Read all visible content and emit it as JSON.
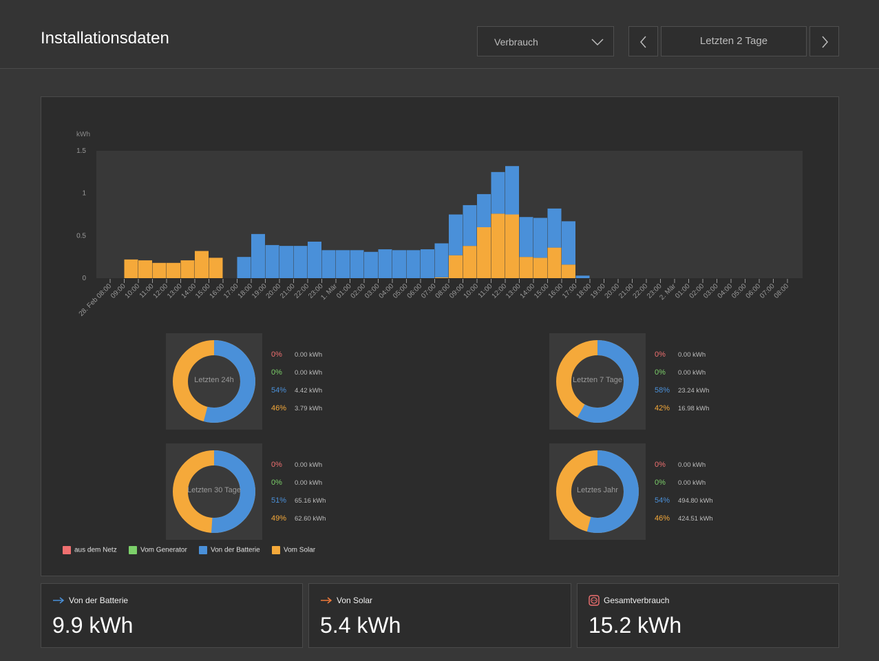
{
  "header": {
    "title": "Installationsdaten",
    "dropdown_value": "Verbrauch",
    "range_label": "Letzten 2 Tage"
  },
  "colors": {
    "grid": "#f07070",
    "generator": "#7cd06a",
    "battery": "#4a90d9",
    "solar": "#f5a93a"
  },
  "chart_data": {
    "type": "bar",
    "ylabel": "kWh",
    "ylim": [
      0,
      1.5
    ],
    "yticks": [
      "0",
      "0.5",
      "1",
      "1.5"
    ],
    "categories": [
      "28. Feb 08:00",
      "09:00",
      "10:00",
      "11:00",
      "12:00",
      "13:00",
      "14:00",
      "15:00",
      "16:00",
      "17:00",
      "18:00",
      "19:00",
      "20:00",
      "21:00",
      "22:00",
      "23:00",
      "1. Mär",
      "01:00",
      "02:00",
      "03:00",
      "04:00",
      "05:00",
      "06:00",
      "07:00",
      "08:00",
      "09:00",
      "10:00",
      "11:00",
      "12:00",
      "13:00",
      "14:00",
      "15:00",
      "16:00",
      "17:00",
      "18:00",
      "19:00",
      "20:00",
      "21:00",
      "22:00",
      "23:00",
      "2. Mär",
      "01:00",
      "02:00",
      "03:00",
      "04:00",
      "05:00",
      "06:00",
      "07:00",
      "08:00"
    ],
    "series": [
      {
        "name": "Vom Solar",
        "color": "#f5a93a",
        "values": [
          0,
          0.22,
          0.21,
          0.18,
          0.18,
          0.21,
          0.32,
          0.24,
          0,
          0,
          0,
          0,
          0,
          0,
          0,
          0,
          0,
          0,
          0,
          0,
          0,
          0,
          0,
          0.01,
          0.27,
          0.38,
          0.6,
          0.76,
          0.75,
          0.25,
          0.24,
          0.36,
          0.16,
          0,
          0,
          0,
          0,
          0,
          0,
          0,
          0,
          0,
          0,
          0,
          0,
          0,
          0,
          0,
          0
        ]
      },
      {
        "name": "Von der Batterie",
        "color": "#4a90d9",
        "values": [
          0,
          0,
          0,
          0,
          0,
          0,
          0,
          0,
          0,
          0.25,
          0.52,
          0.39,
          0.38,
          0.38,
          0.43,
          0.33,
          0.33,
          0.33,
          0.31,
          0.34,
          0.33,
          0.33,
          0.34,
          0.4,
          0.48,
          0.48,
          0.39,
          0.49,
          0.57,
          0.47,
          0.47,
          0.46,
          0.51,
          0.03,
          0,
          0,
          0,
          0,
          0,
          0,
          0,
          0,
          0,
          0,
          0,
          0,
          0,
          0,
          0
        ]
      }
    ]
  },
  "donuts": [
    {
      "title": "Letzten 24h",
      "rows": [
        {
          "pct": "0%",
          "kwh": "0.00 kWh",
          "color": "#f07070"
        },
        {
          "pct": "0%",
          "kwh": "0.00 kWh",
          "color": "#7cd06a"
        },
        {
          "pct": "54%",
          "kwh": "4.42 kWh",
          "color": "#4a90d9"
        },
        {
          "pct": "46%",
          "kwh": "3.79 kWh",
          "color": "#f5a93a"
        }
      ],
      "battery_fraction": 0.54
    },
    {
      "title": "Letzten 7 Tage",
      "rows": [
        {
          "pct": "0%",
          "kwh": "0.00 kWh",
          "color": "#f07070"
        },
        {
          "pct": "0%",
          "kwh": "0.00 kWh",
          "color": "#7cd06a"
        },
        {
          "pct": "58%",
          "kwh": "23.24 kWh",
          "color": "#4a90d9"
        },
        {
          "pct": "42%",
          "kwh": "16.98 kWh",
          "color": "#f5a93a"
        }
      ],
      "battery_fraction": 0.58
    },
    {
      "title": "Letzten 30 Tage",
      "rows": [
        {
          "pct": "0%",
          "kwh": "0.00 kWh",
          "color": "#f07070"
        },
        {
          "pct": "0%",
          "kwh": "0.00 kWh",
          "color": "#7cd06a"
        },
        {
          "pct": "51%",
          "kwh": "65.16 kWh",
          "color": "#4a90d9"
        },
        {
          "pct": "49%",
          "kwh": "62.60 kWh",
          "color": "#f5a93a"
        }
      ],
      "battery_fraction": 0.51
    },
    {
      "title": "Letztes Jahr",
      "rows": [
        {
          "pct": "0%",
          "kwh": "0.00 kWh",
          "color": "#f07070"
        },
        {
          "pct": "0%",
          "kwh": "0.00 kWh",
          "color": "#7cd06a"
        },
        {
          "pct": "54%",
          "kwh": "494.80 kWh",
          "color": "#4a90d9"
        },
        {
          "pct": "46%",
          "kwh": "424.51 kWh",
          "color": "#f5a93a"
        }
      ],
      "battery_fraction": 0.54
    }
  ],
  "legend": [
    {
      "label": "aus dem Netz",
      "color": "#f07070"
    },
    {
      "label": "Vom Generator",
      "color": "#7cd06a"
    },
    {
      "label": "Von der Batterie",
      "color": "#4a90d9"
    },
    {
      "label": "Vom Solar",
      "color": "#f5a93a"
    }
  ],
  "cards": [
    {
      "label": "Von der Batterie",
      "value": "9.9 kWh",
      "icon": "arrow-right-icon",
      "icon_color": "#4a90d9"
    },
    {
      "label": "Von Solar",
      "value": "5.4 kWh",
      "icon": "arrow-right-icon",
      "icon_color": "#f07a3a"
    },
    {
      "label": "Gesamtverbrauch",
      "value": "15.2 kWh",
      "icon": "power-outlet-icon",
      "icon_color": "#f07070"
    }
  ]
}
